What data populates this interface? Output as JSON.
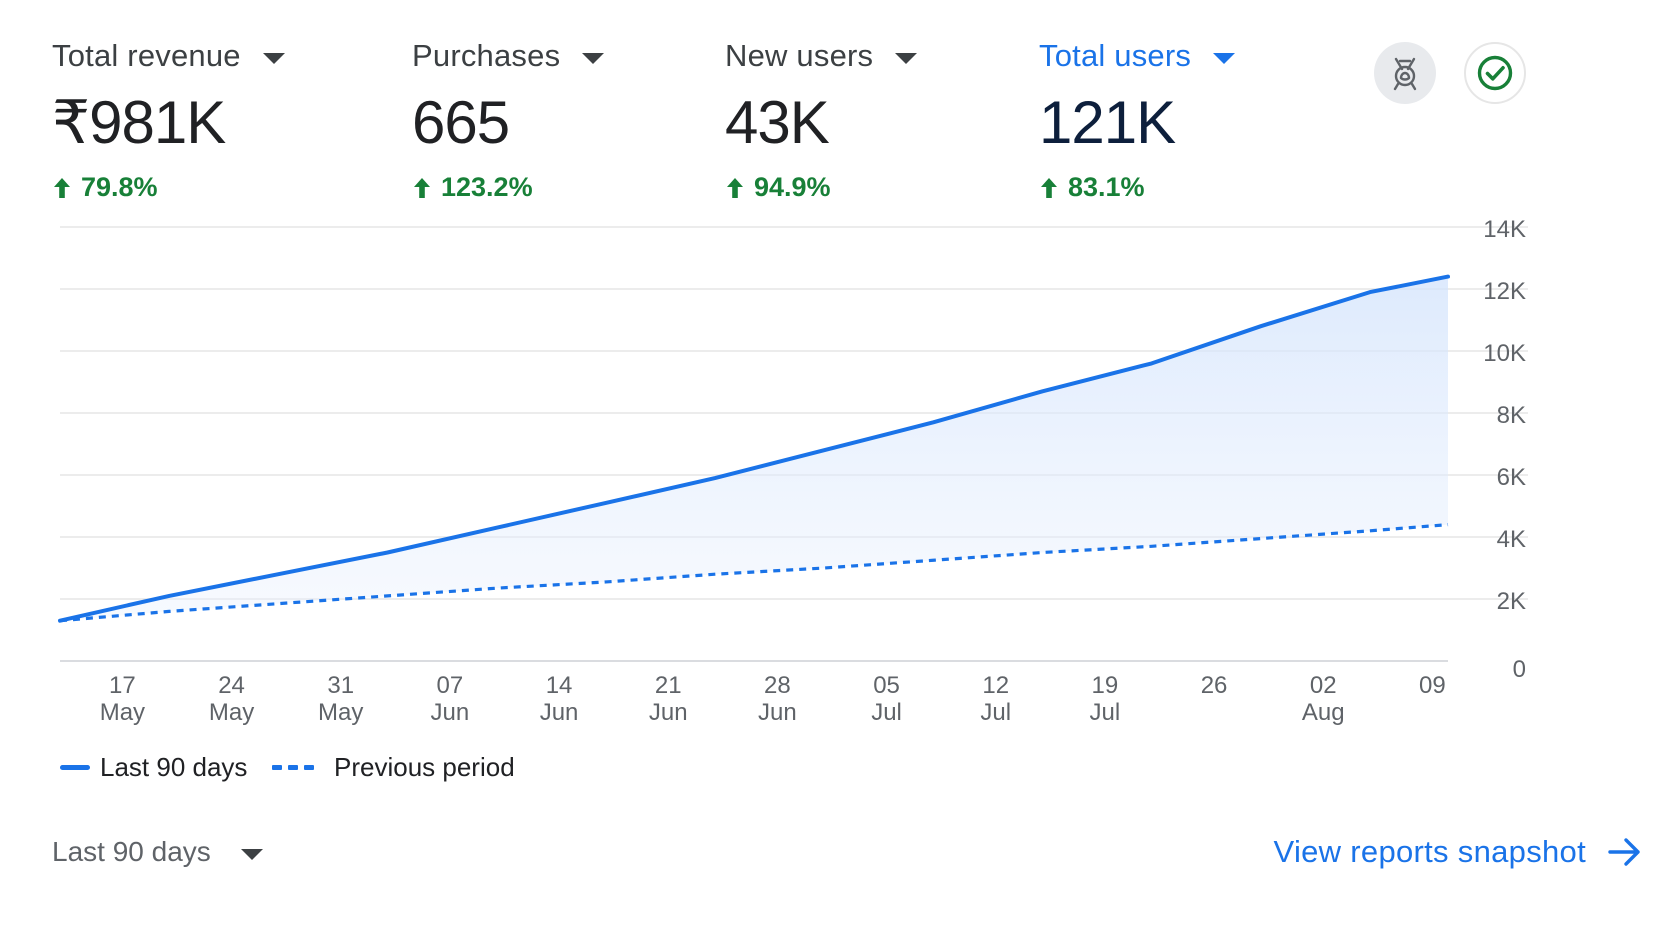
{
  "metrics": [
    {
      "label": "Total revenue",
      "value": "₹981K",
      "change": "79.8%",
      "active": false
    },
    {
      "label": "Purchases",
      "value": "665",
      "change": "123.2%",
      "active": false
    },
    {
      "label": "New users",
      "value": "43K",
      "change": "94.9%",
      "active": false
    },
    {
      "label": "Total users",
      "value": "121K",
      "change": "83.1%",
      "active": true
    }
  ],
  "icons": {
    "insights": "insights-badge-icon",
    "status": "check-circle-icon",
    "arrow": "arrow-right-icon"
  },
  "colors": {
    "accent": "#1a73e8",
    "positive": "#188038",
    "grid": "#e6e6e6",
    "area": "#e8f0fe"
  },
  "chart_data": {
    "type": "area",
    "y_ticks": [
      "0",
      "2K",
      "4K",
      "6K",
      "8K",
      "10K",
      "12K",
      "14K"
    ],
    "ylim": [
      0,
      14000
    ],
    "x_ticks": [
      {
        "day": "17",
        "month": "May"
      },
      {
        "day": "24",
        "month": "May"
      },
      {
        "day": "31",
        "month": "May"
      },
      {
        "day": "07",
        "month": "Jun"
      },
      {
        "day": "14",
        "month": "Jun"
      },
      {
        "day": "21",
        "month": "Jun"
      },
      {
        "day": "28",
        "month": "Jun"
      },
      {
        "day": "05",
        "month": "Jul"
      },
      {
        "day": "12",
        "month": "Jul"
      },
      {
        "day": "19",
        "month": "Jul"
      },
      {
        "day": "26",
        "month": ""
      },
      {
        "day": "02",
        "month": "Aug"
      },
      {
        "day": "09",
        "month": ""
      }
    ],
    "x": [
      "13 May",
      "20 May",
      "27 May",
      "03 Jun",
      "10 Jun",
      "17 Jun",
      "24 Jun",
      "01 Jul",
      "08 Jul",
      "15 Jul",
      "22 Jul",
      "29 Jul",
      "05 Aug",
      "10 Aug"
    ],
    "series": [
      {
        "name": "Last 90 days",
        "style": "solid",
        "values": [
          1300,
          2100,
          2800,
          3500,
          4300,
          5100,
          5900,
          6800,
          7700,
          8700,
          9600,
          10800,
          11900,
          12400
        ]
      },
      {
        "name": "Previous period",
        "style": "dashed",
        "values": [
          1300,
          1600,
          1850,
          2100,
          2350,
          2550,
          2800,
          3000,
          3250,
          3500,
          3700,
          3950,
          4200,
          4400
        ]
      }
    ],
    "grid": true,
    "legend_position": "bottom-left"
  },
  "legend": {
    "current": "Last 90 days",
    "previous": "Previous period"
  },
  "footer": {
    "range_label": "Last 90 days",
    "view_link": "View reports snapshot"
  }
}
